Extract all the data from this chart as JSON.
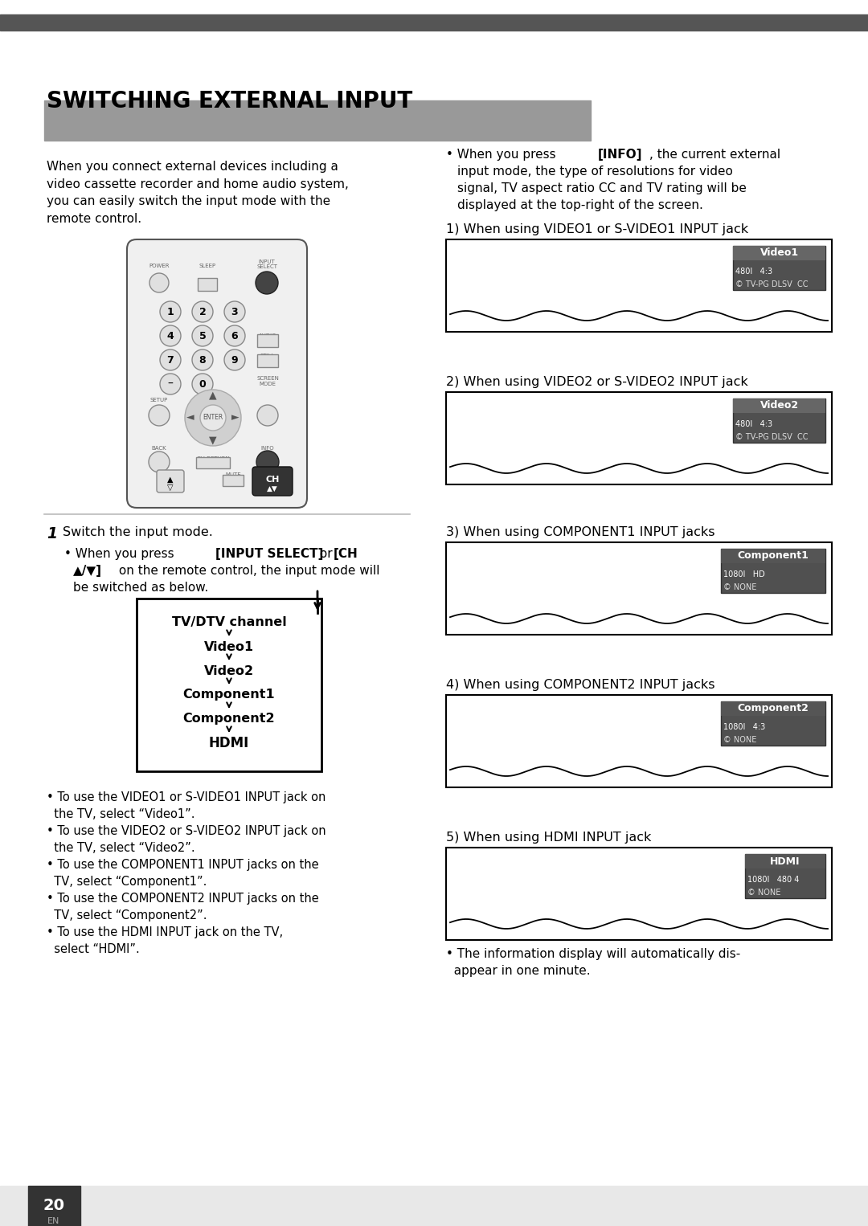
{
  "page_bg": "#ffffff",
  "top_bar_color": "#555555",
  "title": "SWITCHING EXTERNAL INPUT",
  "title_bg": "#aaaaaa",
  "body_text_left": "When you connect external devices including a\nvideo cassette recorder and home audio system,\nyou can easily switch the input mode with the\nremote control.",
  "flow_items": [
    "TV/DTV channel",
    "Video1",
    "Video2",
    "Component1",
    "Component2",
    "HDMI"
  ],
  "bullet_list": [
    "• To use the VIDEO1 or S-VIDEO1 INPUT jack on\n  the TV, select “Video1”.",
    "• To use the VIDEO2 or S-VIDEO2 INPUT jack on\n  the TV, select “Video2”.",
    "• To use the COMPONENT1 INPUT jacks on the\n  TV, select “Component1”.",
    "• To use the COMPONENT2 INPUT jacks on the\n  TV, select “Component2”.",
    "• To use the HDMI INPUT jack on the TV,\n  select “HDMI”."
  ],
  "right_info_bullet_plain": "When you press ",
  "right_info_bold": "[INFO]",
  "right_info_rest": ", the current external\ninput mode, the type of resolutions for video\nsignal, TV aspect ratio CC and TV rating will be\ndisplayed at the top-right of the screen.",
  "screen_items": [
    {
      "number": "1",
      "label": "When using VIDEO1 or S-VIDEO1 INPUT jack",
      "title": "Video1",
      "line2": "480I   4:3",
      "line3": "© TV-PG DLSV  CC",
      "title_bg": "#666666"
    },
    {
      "number": "2",
      "label": "When using VIDEO2 or S-VIDEO2 INPUT jack",
      "title": "Video2",
      "line2": "480I   4:3",
      "line3": "© TV-PG DLSV  CC",
      "title_bg": "#666666"
    },
    {
      "number": "3",
      "label": "When using COMPONENT1 INPUT jacks",
      "title": "Component1",
      "line2": "1080I   HD",
      "line3": "© NONE",
      "title_bg": "#555555"
    },
    {
      "number": "4",
      "label": "When using COMPONENT2 INPUT jacks",
      "title": "Component2",
      "line2": "1080I   4:3",
      "line3": "© NONE",
      "title_bg": "#555555"
    },
    {
      "number": "5",
      "label": "When using HDMI INPUT jack",
      "title": "HDMI",
      "line2": "1080I   480 4",
      "line3": "© NONE",
      "title_bg": "#555555"
    }
  ],
  "right_footer": "• The information display will automatically dis-\n  appear in one minute.",
  "page_number": "20",
  "page_number_lang": "EN"
}
